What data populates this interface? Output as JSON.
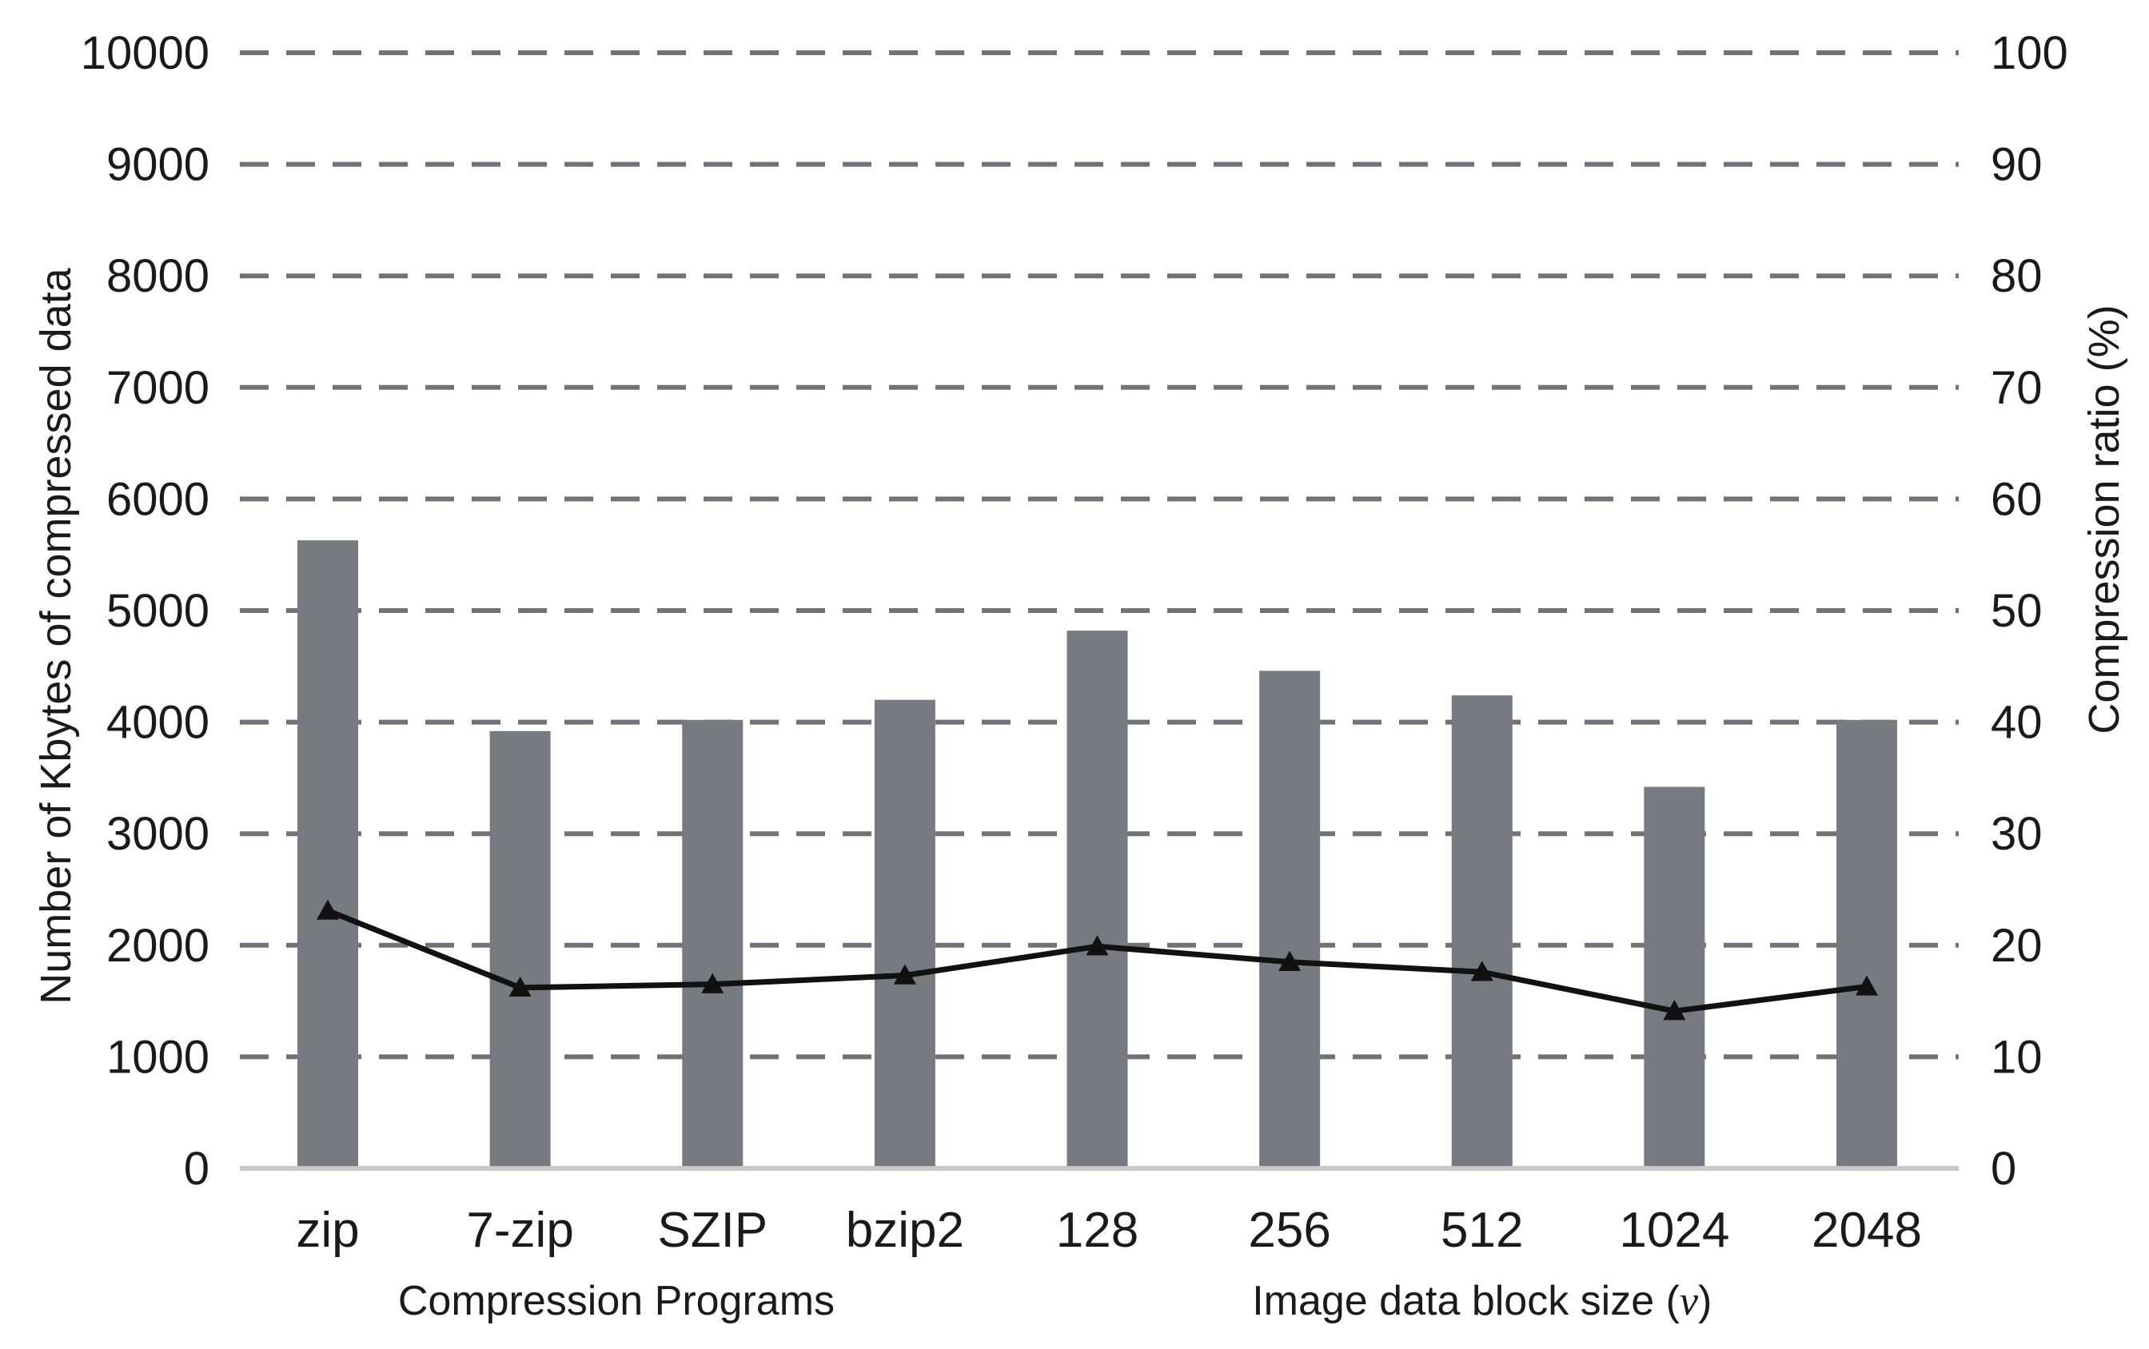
{
  "chart_data": {
    "type": "bar",
    "categories": [
      "zip",
      "7-zip",
      "SZIP",
      "bzip2",
      "128",
      "256",
      "512",
      "1024",
      "2048"
    ],
    "series": [
      {
        "type": "bar",
        "axis": "left",
        "color": "#767b82",
        "values": [
          5630,
          3920,
          4020,
          4200,
          4820,
          4460,
          4240,
          3420,
          4020
        ]
      },
      {
        "type": "line",
        "axis": "right",
        "color": "#111111",
        "marker": "triangle",
        "values": [
          23.1,
          16.2,
          16.5,
          17.3,
          19.9,
          18.5,
          17.6,
          14.1,
          16.3
        ]
      }
    ],
    "ylabel": "Number of Kbytes of compressed data",
    "ylabel_right": "Compression ratio (%)",
    "ylim": [
      0,
      10000
    ],
    "ylim_right": [
      0,
      100
    ],
    "yticks": [
      "0",
      "1000",
      "2000",
      "3000",
      "4000",
      "5000",
      "6000",
      "7000",
      "8000",
      "9000",
      "10000"
    ],
    "yticks_right": [
      "0",
      "10",
      "20",
      "30",
      "40",
      "50",
      "60",
      "70",
      "80",
      "90",
      "100"
    ],
    "grid": "dashed horizontal",
    "group_labels": [
      {
        "label": "Compression  Programs",
        "first": 0,
        "last": 3
      },
      {
        "label": "Image data block size (",
        "label_italic": "v",
        "label_end": ")",
        "first": 4,
        "last": 8
      }
    ]
  }
}
